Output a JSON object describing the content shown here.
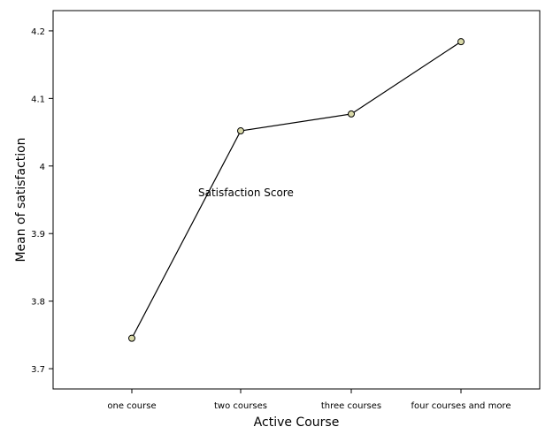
{
  "chart_data": {
    "type": "line",
    "categories": [
      "one course",
      "two courses",
      "three courses",
      "four  courses and more"
    ],
    "values": [
      3.745,
      4.052,
      4.077,
      4.184
    ],
    "xlabel": "Active Course",
    "ylabel": "Mean of satisfaction",
    "ylim": [
      3.67,
      4.23
    ],
    "yticks": [
      3.7,
      3.8,
      3.9,
      4.0,
      4.1,
      4.2
    ],
    "ytick_labels": [
      "3.7",
      "3.8",
      "3.9",
      "4",
      "4.1",
      "4.2"
    ],
    "annotation": "Satisfaction Score",
    "grid": false,
    "legend": "none",
    "colors": {
      "line": "#000000",
      "marker_fill": "#d9d9a8",
      "marker_stroke": "#000000",
      "frame": "#000000"
    }
  }
}
